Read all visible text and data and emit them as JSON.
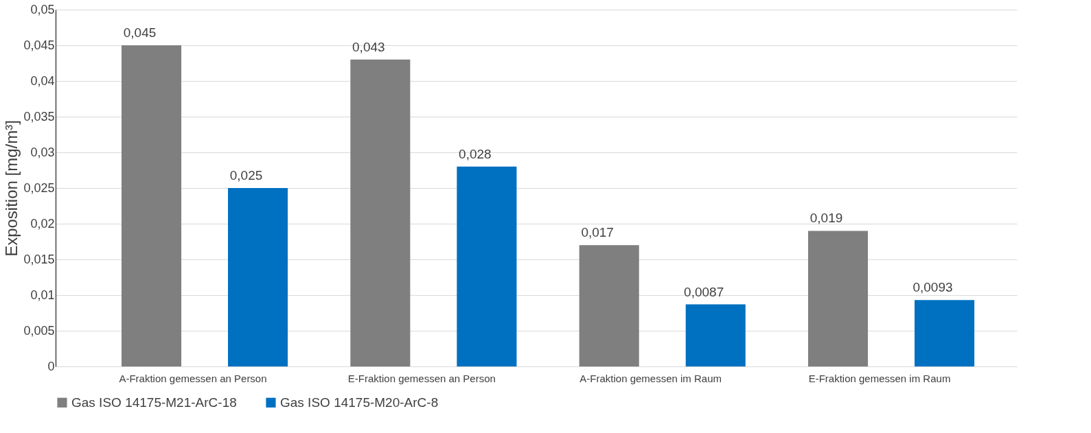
{
  "chart_data": {
    "type": "bar",
    "ylabel": "Exposition     [mg/m³]",
    "categories": [
      "A-Fraktion gemessen an Person",
      "E-Fraktion gemessen an Person",
      "A-Fraktion gemessen im Raum",
      "E-Fraktion gemessen im Raum"
    ],
    "series": [
      {
        "name": "Gas ISO 14175-M21-ArC-18",
        "color": "#7f7f7f",
        "values": [
          0.045,
          0.043,
          0.017,
          0.019
        ],
        "value_labels": [
          "0,045",
          "0,043",
          "0,017",
          "0,019"
        ]
      },
      {
        "name": "Gas ISO 14175-M20-ArC-8",
        "color": "#0070c0",
        "values": [
          0.025,
          0.028,
          0.0087,
          0.0093
        ],
        "value_labels": [
          "0,025",
          "0,028",
          "0,0087",
          "0,0093"
        ]
      }
    ],
    "ylim": [
      0,
      0.05
    ],
    "yticks": [
      {
        "value": 0,
        "label": "0"
      },
      {
        "value": 0.005,
        "label": "0,005"
      },
      {
        "value": 0.01,
        "label": "0,01"
      },
      {
        "value": 0.015,
        "label": "0,015"
      },
      {
        "value": 0.02,
        "label": "0,02"
      },
      {
        "value": 0.025,
        "label": "0,025"
      },
      {
        "value": 0.03,
        "label": "0,03"
      },
      {
        "value": 0.035,
        "label": "0,035"
      },
      {
        "value": 0.04,
        "label": "0,04"
      },
      {
        "value": 0.045,
        "label": "0,045"
      },
      {
        "value": 0.05,
        "label": "0,05"
      }
    ],
    "grid": "y",
    "legend": "bottom"
  }
}
